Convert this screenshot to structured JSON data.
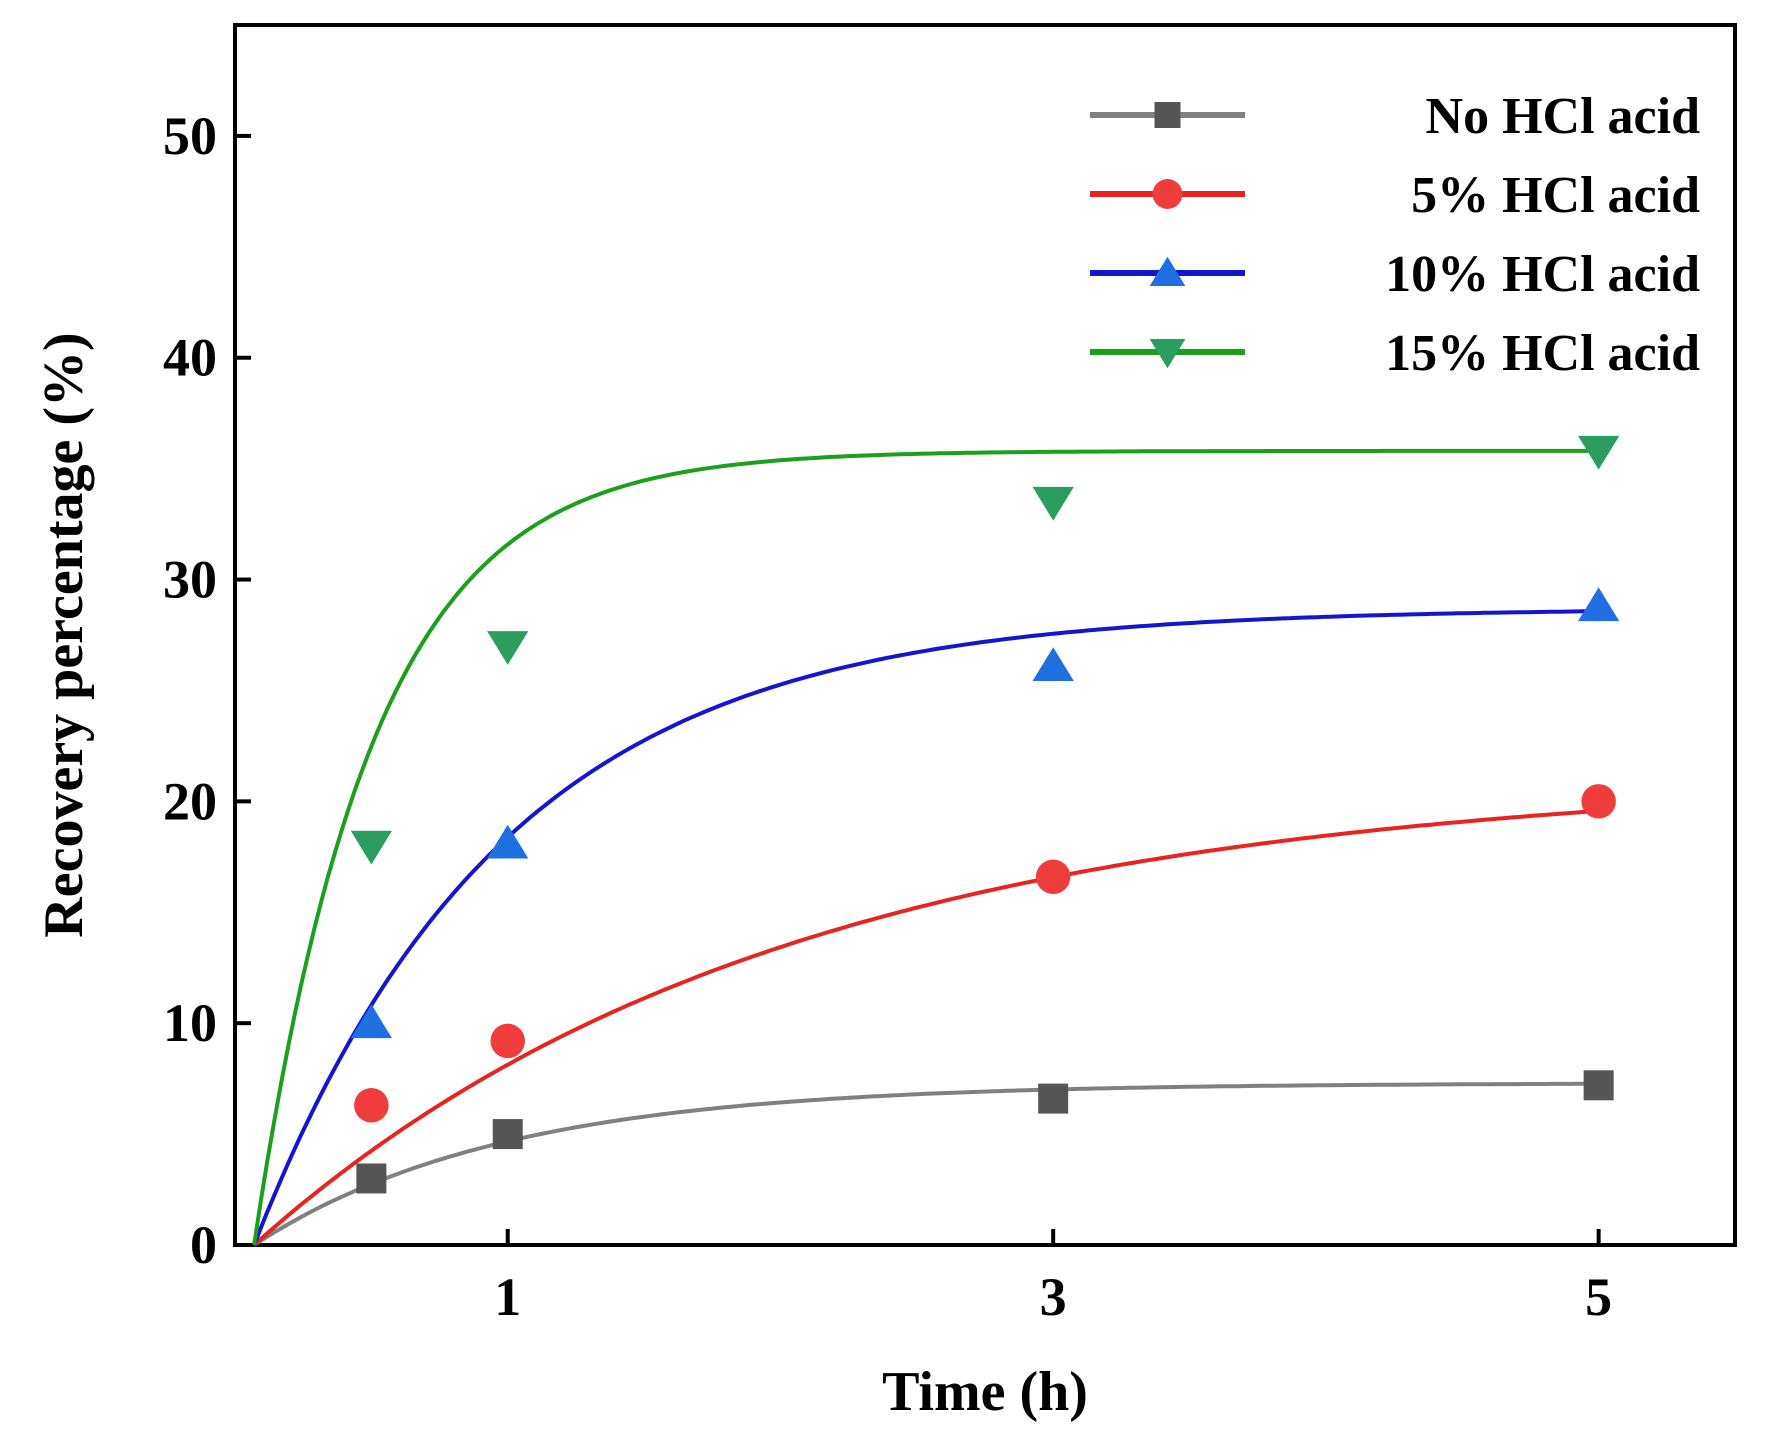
{
  "chart_data": {
    "type": "scatter",
    "title": "",
    "xlabel": "Time (h)",
    "ylabel": "Recovery percentage (%)",
    "xlim": [
      0,
      5.5
    ],
    "ylim": [
      0,
      55
    ],
    "xticks": [
      1,
      3,
      5
    ],
    "yticks": [
      0,
      10,
      20,
      30,
      40,
      50
    ],
    "legend_position": "top-right",
    "x": [
      0.5,
      1,
      3,
      5
    ],
    "series": [
      {
        "name": "No HCl acid",
        "color": "#808080",
        "marker_color": "#555555",
        "marker": "square",
        "values": [
          3.0,
          5.0,
          6.6,
          7.2
        ],
        "fit": {
          "model": "first-order",
          "ymax": 7.3,
          "k": 1.1,
          "t0": 0.07
        }
      },
      {
        "name": "5% HCl acid",
        "color": "#e8241f",
        "marker_color": "#ef3c3c",
        "marker": "circle",
        "values": [
          6.3,
          9.2,
          16.6,
          20.0
        ],
        "fit": {
          "model": "first-order",
          "ymax": 21.2,
          "k": 0.52,
          "t0": 0.07
        }
      },
      {
        "name": "10% HCl acid",
        "color": "#1515d0",
        "marker_color": "#1f6fe0",
        "marker": "triangle-up",
        "values": [
          10.0,
          18.1,
          26.1,
          28.8
        ],
        "fit": {
          "model": "first-order",
          "ymax": 28.7,
          "k": 1.1,
          "t0": 0.07
        }
      },
      {
        "name": "15% HCl acid",
        "color": "#1aa01a",
        "marker_color": "#2a9d5f",
        "marker": "triangle-down",
        "values": [
          18.0,
          27.0,
          33.5,
          35.8
        ],
        "fit": {
          "model": "first-order",
          "ymax": 35.8,
          "k": 2.3,
          "t0": 0.07
        }
      }
    ]
  }
}
